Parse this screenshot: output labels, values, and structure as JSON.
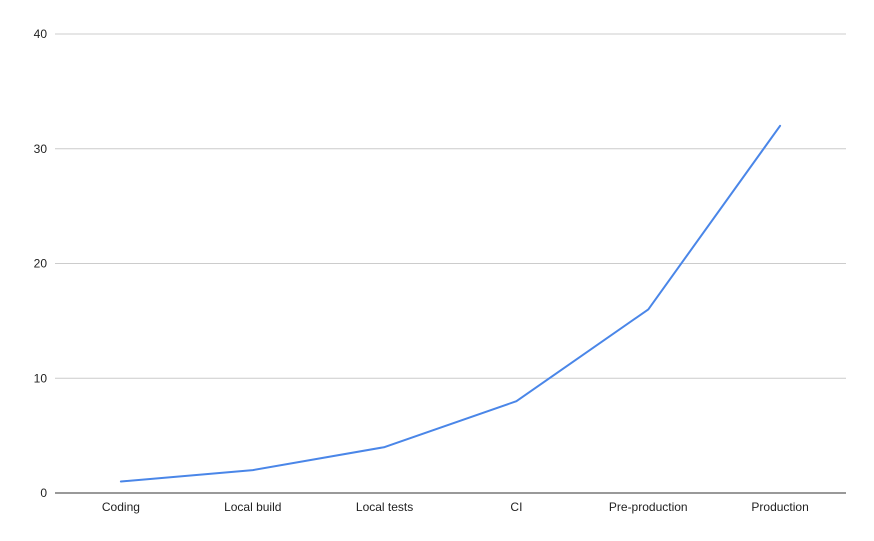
{
  "chart_data": {
    "type": "line",
    "categories": [
      "Coding",
      "Local build",
      "Local tests",
      "CI",
      "Pre-production",
      "Production"
    ],
    "series": [
      {
        "values": [
          1,
          2,
          4,
          8,
          16,
          32
        ]
      }
    ],
    "yticks": [
      0,
      10,
      20,
      30,
      40
    ],
    "ylim": [
      0,
      40
    ],
    "title": "",
    "xlabel": "",
    "ylabel": "",
    "grid": true,
    "legend": "none",
    "colors": {
      "series": "#4a86e8",
      "grid": "#cccccc",
      "axis": "#333333",
      "text": "#222222"
    }
  }
}
